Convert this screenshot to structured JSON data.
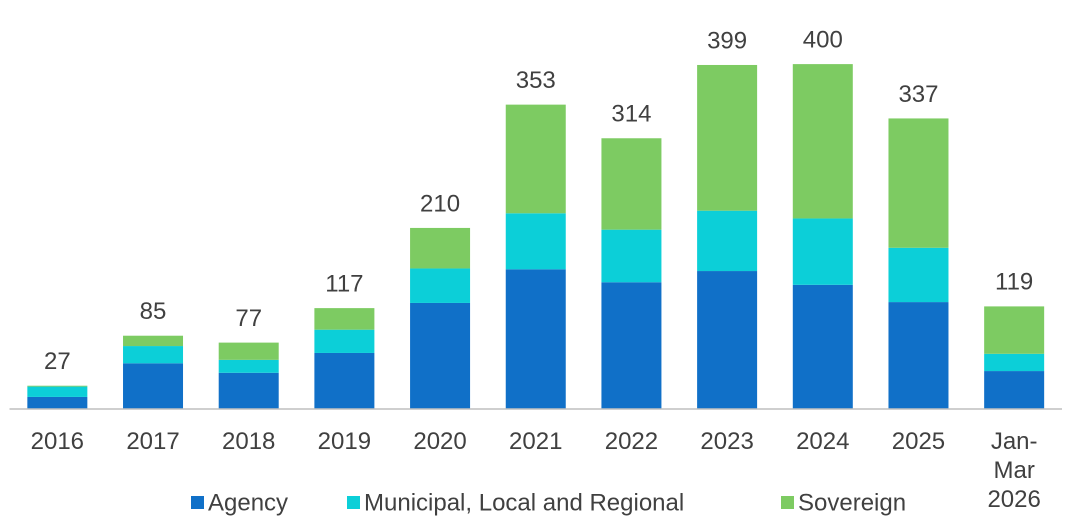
{
  "chart_data": {
    "type": "stacked-bar",
    "categories": [
      "2016",
      "2017",
      "2018",
      "2019",
      "2020",
      "2021",
      "2022",
      "2023",
      "2024",
      "2025",
      "Jan-Mar 2026"
    ],
    "series": [
      {
        "name": "Agency",
        "color": "#1070c8",
        "values": [
          14,
          53,
          42,
          65,
          123,
          162,
          147,
          160,
          144,
          124,
          44
        ]
      },
      {
        "name": "Municipal, Local and Regional",
        "color": "#0ccfd8",
        "values": [
          12,
          20,
          15,
          27,
          40,
          65,
          61,
          70,
          77,
          63,
          20
        ]
      },
      {
        "name": "Sovereign",
        "color": "#7dcb62",
        "values": [
          1,
          12,
          20,
          25,
          47,
          126,
          106,
          169,
          179,
          150,
          55
        ]
      }
    ],
    "totals": [
      27,
      85,
      77,
      117,
      210,
      353,
      314,
      399,
      400,
      337,
      119
    ],
    "ylim": [
      0,
      450
    ]
  }
}
